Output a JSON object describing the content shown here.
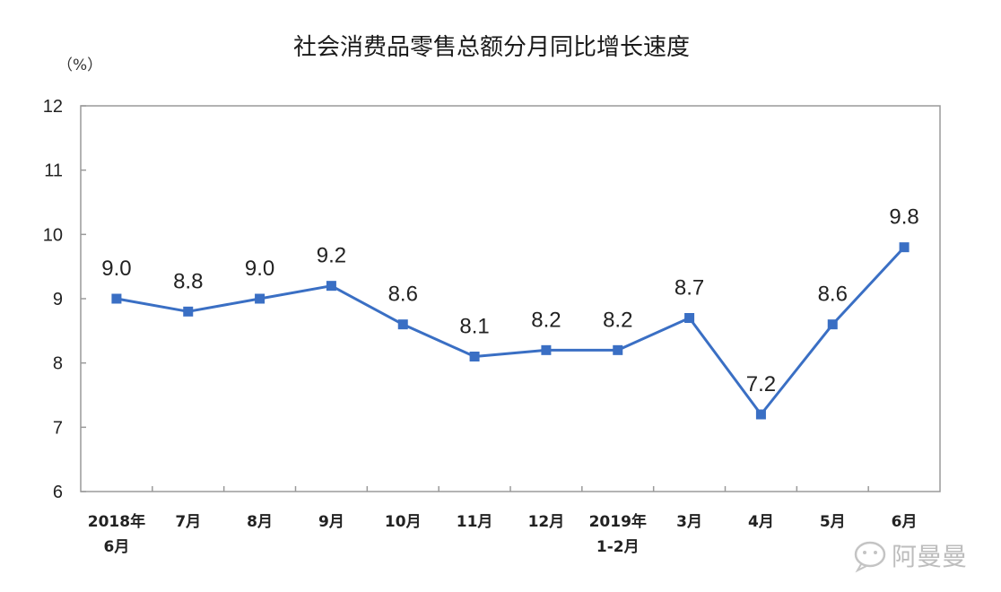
{
  "chart_data": {
    "type": "line",
    "title": "社会消费品零售总额分月同比增长速度",
    "ylabel": "（%）",
    "xlabel": "",
    "ylim": [
      6,
      12
    ],
    "yticks": [
      "6",
      "7",
      "8",
      "9",
      "10",
      "11",
      "12"
    ],
    "grid": false,
    "legend": "none",
    "categories": [
      [
        "2018年",
        "6月"
      ],
      [
        "7月"
      ],
      [
        "8月"
      ],
      [
        "9月"
      ],
      [
        "10月"
      ],
      [
        "11月"
      ],
      [
        "12月"
      ],
      [
        "2019年",
        "1-2月"
      ],
      [
        "3月"
      ],
      [
        "4月"
      ],
      [
        "5月"
      ],
      [
        "6月"
      ]
    ],
    "series": [
      {
        "values": [
          9.0,
          8.8,
          9.0,
          9.2,
          8.6,
          8.1,
          8.2,
          8.2,
          8.7,
          7.2,
          8.6,
          9.8
        ],
        "labels": [
          "9.0",
          "8.8",
          "9.0",
          "9.2",
          "8.6",
          "8.1",
          "8.2",
          "8.2",
          "8.7",
          "7.2",
          "8.6",
          "9.8"
        ],
        "color": "#3a6fc4"
      }
    ]
  },
  "watermark": {
    "text": "阿曼曼",
    "icon": "wechat-logo-icon"
  }
}
